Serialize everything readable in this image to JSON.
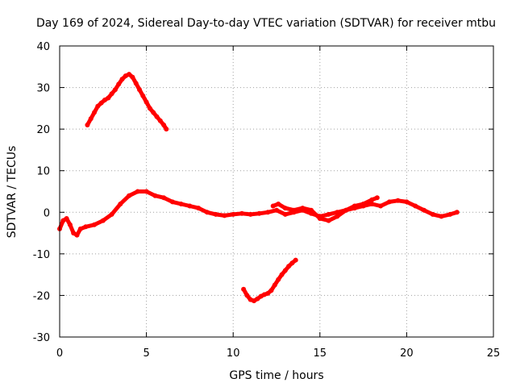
{
  "chart_data": {
    "type": "scatter",
    "title": "Day 169 of 2024, Sidereal Day-to-day VTEC variation (SDTVAR) for receiver mtbu",
    "xlabel": "GPS time / hours",
    "ylabel": "SDTVAR / TECUs",
    "xlim": [
      0,
      25
    ],
    "ylim": [
      -30,
      40
    ],
    "xticks": [
      0,
      5,
      10,
      15,
      20,
      25
    ],
    "yticks": [
      -30,
      -20,
      -10,
      0,
      10,
      20,
      30,
      40
    ],
    "grid": true,
    "series_color": "#ff0000",
    "series": [
      {
        "name": "arc-upper",
        "x": [
          1.6,
          1.8,
          2.0,
          2.2,
          2.4,
          2.6,
          2.8,
          3.0,
          3.2,
          3.4,
          3.6,
          3.8,
          4.0,
          4.2,
          4.4,
          4.6,
          4.8,
          5.0,
          5.2,
          5.4,
          5.6,
          5.8,
          6.0,
          6.15
        ],
        "y": [
          21,
          22.5,
          24,
          25.5,
          26.3,
          27,
          27.5,
          28.5,
          29.5,
          30.8,
          32,
          32.8,
          33.2,
          32.5,
          31,
          29.5,
          28,
          26.5,
          25,
          24,
          23,
          22,
          21,
          20
        ]
      },
      {
        "name": "arc-main",
        "x": [
          0.0,
          0.2,
          0.4,
          0.6,
          0.8,
          1.0,
          1.2,
          1.5,
          2.0,
          2.5,
          3.0,
          3.5,
          4.0,
          4.5,
          5.0,
          5.5,
          6.0,
          6.5,
          7.0,
          7.5,
          8.0,
          8.5,
          9.0,
          9.5,
          10.0,
          10.5,
          11.0,
          11.5,
          12.0,
          12.5,
          13.0,
          13.5,
          14.0,
          14.5,
          15.0,
          15.5,
          16.0,
          16.5,
          17.0,
          17.5,
          18.0,
          18.5,
          19.0,
          19.5,
          20.0,
          20.5,
          21.0,
          21.5,
          22.0,
          22.5,
          22.9
        ],
        "y": [
          -4,
          -2,
          -1.5,
          -3,
          -5,
          -5.5,
          -4,
          -3.5,
          -3,
          -2,
          -0.5,
          2,
          4,
          5,
          5,
          4,
          3.5,
          2.5,
          2,
          1.5,
          1,
          0,
          -0.5,
          -0.8,
          -0.5,
          -0.3,
          -0.5,
          -0.3,
          0,
          0.5,
          -0.5,
          0,
          0.5,
          -0.3,
          -1,
          -0.5,
          0,
          0.5,
          1,
          1.5,
          2,
          1.5,
          2.5,
          2.8,
          2.5,
          1.5,
          0.5,
          -0.5,
          -1,
          -0.5,
          0
        ]
      },
      {
        "name": "arc-main-secondary",
        "x": [
          12.3,
          12.6,
          13.0,
          13.5,
          14.0,
          14.5,
          15.0,
          15.5,
          16.0,
          16.5,
          17.0,
          17.5,
          18.0,
          18.3
        ],
        "y": [
          1.5,
          2.0,
          1.0,
          0.5,
          1.0,
          0.5,
          -1.5,
          -2.0,
          -1.0,
          0.5,
          1.5,
          2.0,
          3.0,
          3.5
        ]
      },
      {
        "name": "arc-lower",
        "x": [
          10.6,
          10.8,
          11.0,
          11.2,
          11.4,
          11.6,
          11.8,
          12.0,
          12.2,
          12.4,
          12.6,
          12.8,
          13.0,
          13.2,
          13.4,
          13.6
        ],
        "y": [
          -18.5,
          -20,
          -21,
          -21.3,
          -20.8,
          -20.2,
          -19.8,
          -19.5,
          -18.8,
          -17.5,
          -16.2,
          -15,
          -14,
          -13,
          -12.2,
          -11.5
        ]
      }
    ]
  }
}
